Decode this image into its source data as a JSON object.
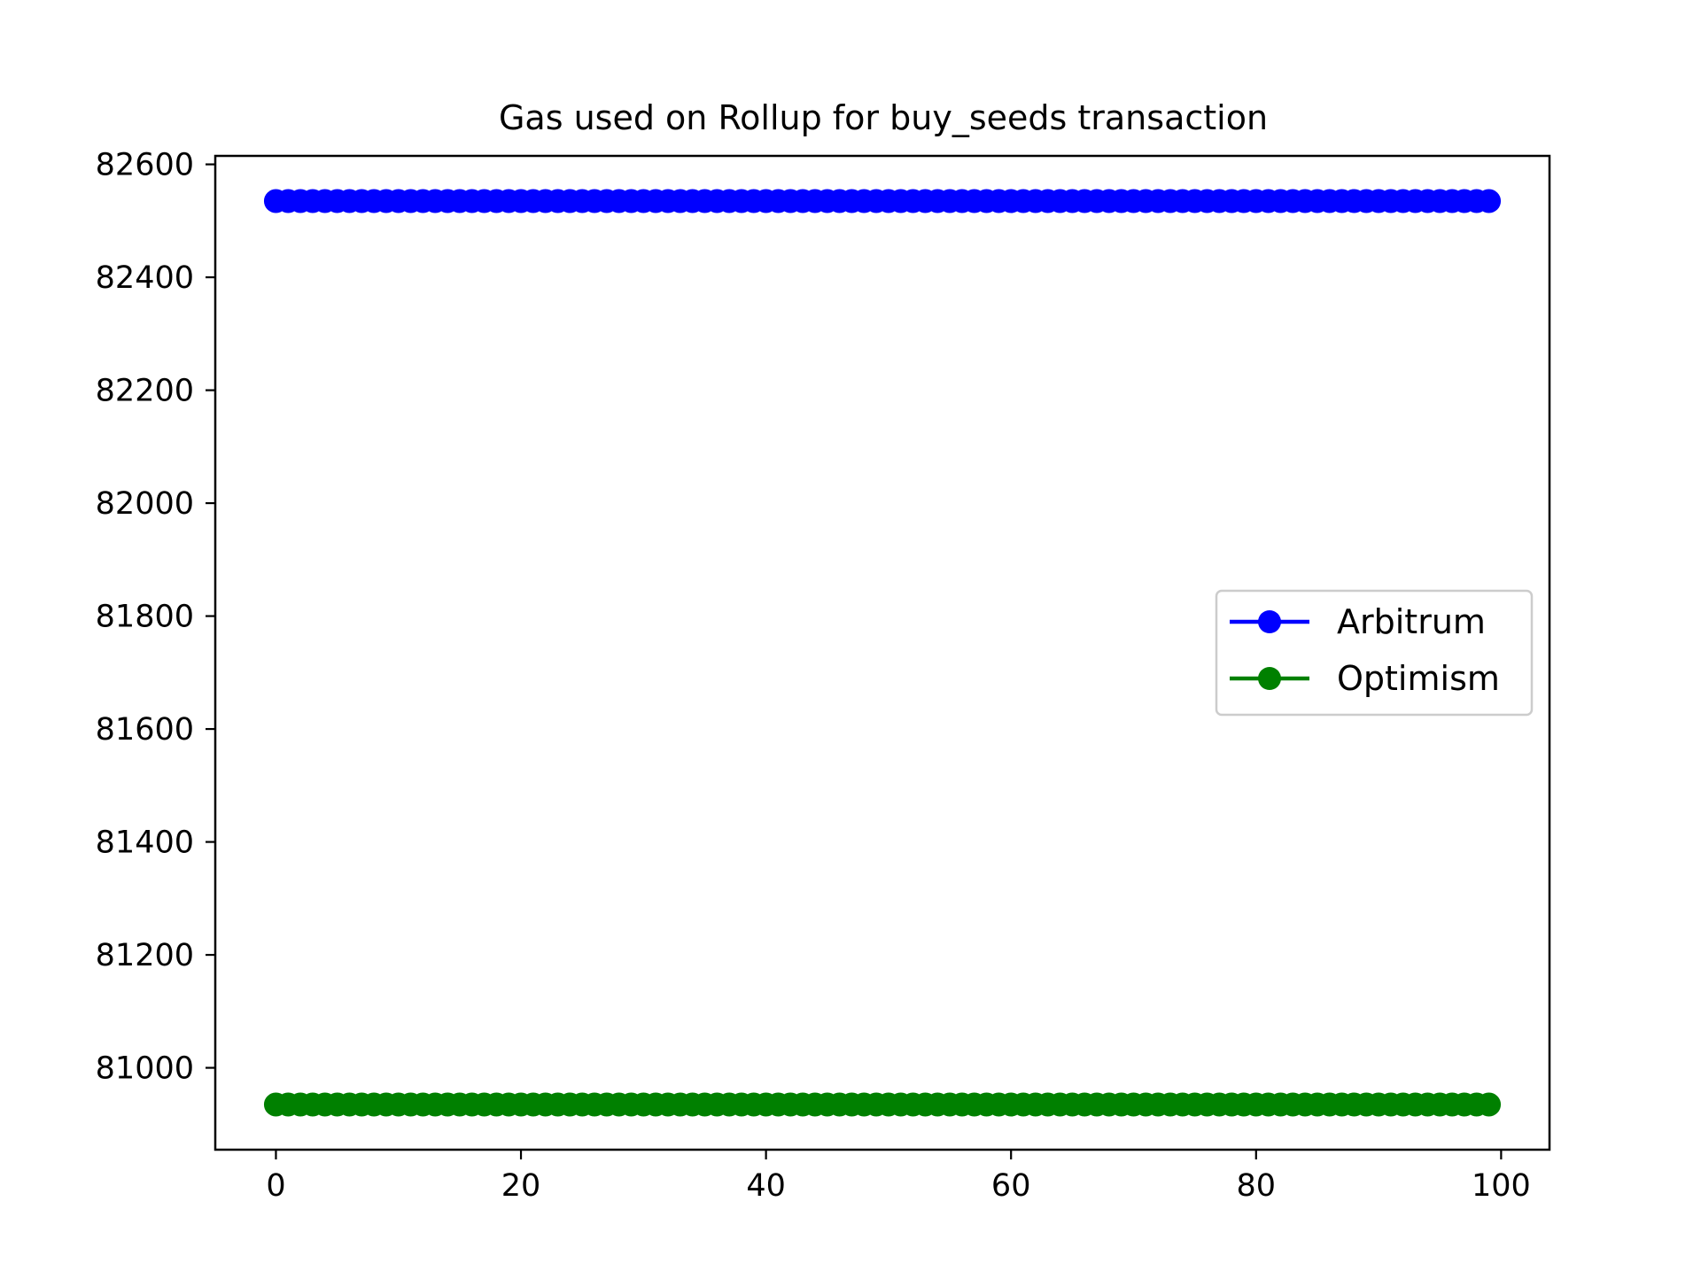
{
  "chart_data": {
    "type": "line",
    "title": "Gas used on Rollup for buy_seeds transaction",
    "xlabel": "",
    "ylabel": "",
    "xlim": [
      -4.95,
      103.95
    ],
    "ylim": [
      80855,
      82615
    ],
    "x_ticks": [
      0,
      20,
      40,
      60,
      80,
      100
    ],
    "y_ticks": [
      81000,
      81200,
      81400,
      81600,
      81800,
      82000,
      82200,
      82400,
      82600
    ],
    "x_tick_labels": [
      "0",
      "20",
      "40",
      "60",
      "80",
      "100"
    ],
    "y_tick_labels": [
      "81000",
      "81200",
      "81400",
      "81600",
      "81800",
      "82000",
      "82200",
      "82400",
      "82600"
    ],
    "grid": false,
    "legend_position": "center-right",
    "x_start": 0,
    "x_end": 99,
    "series": [
      {
        "name": "Arbitrum",
        "color": "#0000ff",
        "marker": "circle",
        "constant_value": 82535
      },
      {
        "name": "Optimism",
        "color": "#008000",
        "marker": "circle",
        "constant_value": 80935
      }
    ]
  }
}
